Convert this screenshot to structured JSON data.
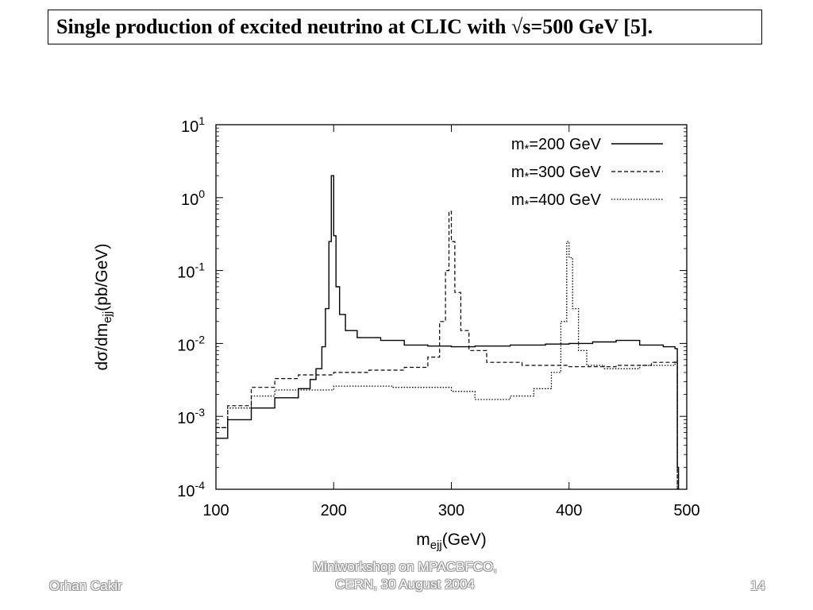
{
  "slide": {
    "title": "Single production of excited neutrino at CLIC with √s=500 GeV [5].",
    "footer_left": "Orhan Cakir",
    "footer_center_line1": "Miniworkshop on MPACBFCO,",
    "footer_center_line2": "CERN, 30 August 2004",
    "page_number": "14"
  },
  "chart_data": {
    "type": "line",
    "xlabel": "m_ejj(GeV)",
    "ylabel": "dσ/dm_ejj(pb/GeV)",
    "xlim": [
      100,
      500
    ],
    "ylim": [
      0.0001,
      10
    ],
    "yscale": "log",
    "x_ticks": [
      "100",
      "200",
      "300",
      "400",
      "500"
    ],
    "y_ticks": [
      "10^1",
      "10^0",
      "10^-1",
      "10^-2",
      "10^-3",
      "10^-4"
    ],
    "legend_position": "top-right",
    "series": [
      {
        "name": "m*=200 GeV",
        "style": "solid",
        "x": [
          100,
          110,
          130,
          150,
          170,
          180,
          185,
          190,
          193,
          196,
          198,
          200,
          202,
          205,
          210,
          220,
          240,
          260,
          280,
          300,
          320,
          350,
          380,
          400,
          420,
          440,
          460,
          480,
          490,
          492,
          493
        ],
        "y": [
          0.0005,
          0.0009,
          0.0013,
          0.0018,
          0.0024,
          0.0032,
          0.0045,
          0.009,
          0.03,
          0.25,
          2.0,
          0.3,
          0.06,
          0.025,
          0.015,
          0.012,
          0.011,
          0.0095,
          0.0092,
          0.009,
          0.0092,
          0.0095,
          0.0098,
          0.01,
          0.0105,
          0.011,
          0.0095,
          0.009,
          0.0085,
          0.0002,
          0.0001
        ]
      },
      {
        "name": "m*=300 GeV",
        "style": "dashed",
        "x": [
          100,
          110,
          130,
          150,
          170,
          200,
          230,
          260,
          280,
          290,
          295,
          298,
          300,
          303,
          308,
          315,
          330,
          360,
          400,
          440,
          470,
          490,
          492
        ],
        "y": [
          0.0007,
          0.0014,
          0.0025,
          0.0033,
          0.0037,
          0.004,
          0.0043,
          0.0047,
          0.0065,
          0.02,
          0.1,
          0.65,
          0.25,
          0.05,
          0.015,
          0.008,
          0.0055,
          0.005,
          0.0048,
          0.005,
          0.0055,
          0.0058,
          0.0001
        ]
      },
      {
        "name": "m*=400 GeV",
        "style": "dotted",
        "x": [
          100,
          110,
          130,
          150,
          200,
          250,
          300,
          320,
          350,
          370,
          385,
          393,
          398,
          400,
          403,
          408,
          415,
          430,
          460,
          490,
          492
        ],
        "y": [
          0.0007,
          0.0013,
          0.0019,
          0.0023,
          0.0026,
          0.0025,
          0.0022,
          0.0017,
          0.0019,
          0.0024,
          0.004,
          0.02,
          0.25,
          0.15,
          0.03,
          0.008,
          0.005,
          0.0045,
          0.005,
          0.0055,
          0.0001
        ]
      }
    ]
  }
}
